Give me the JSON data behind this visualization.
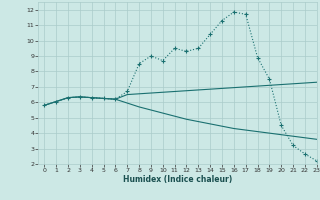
{
  "xlabel": "Humidex (Indice chaleur)",
  "bg_color": "#cce8e5",
  "grid_color": "#aaccca",
  "line_color": "#1a7070",
  "xlim": [
    -0.5,
    23
  ],
  "ylim": [
    2,
    12.5
  ],
  "xticks": [
    0,
    1,
    2,
    3,
    4,
    5,
    6,
    7,
    8,
    9,
    10,
    11,
    12,
    13,
    14,
    15,
    16,
    17,
    18,
    19,
    20,
    21,
    22,
    23
  ],
  "yticks": [
    2,
    3,
    4,
    5,
    6,
    7,
    8,
    9,
    10,
    11,
    12
  ],
  "line1_x": [
    0,
    1,
    2,
    3,
    4,
    5,
    6,
    7,
    8,
    9,
    10,
    11,
    12,
    13,
    14,
    15,
    16,
    17,
    18,
    19,
    20,
    21,
    22,
    23
  ],
  "line1_y": [
    5.8,
    6.05,
    6.3,
    6.35,
    6.3,
    6.25,
    6.2,
    6.7,
    8.5,
    9.0,
    8.7,
    9.5,
    9.3,
    9.5,
    10.4,
    11.3,
    11.85,
    11.7,
    8.9,
    7.5,
    4.5,
    3.2,
    2.65,
    2.2
  ],
  "line2_x": [
    0,
    1,
    2,
    3,
    4,
    5,
    6,
    7,
    8,
    9,
    10,
    11,
    12,
    13,
    14,
    15,
    16,
    17,
    18,
    19,
    20,
    21,
    22,
    23
  ],
  "line2_y": [
    5.8,
    6.05,
    6.3,
    6.35,
    6.3,
    6.25,
    6.2,
    6.5,
    6.55,
    6.6,
    6.65,
    6.7,
    6.75,
    6.8,
    6.85,
    6.9,
    6.95,
    7.0,
    7.05,
    7.1,
    7.15,
    7.2,
    7.25,
    7.3
  ],
  "line3_x": [
    0,
    1,
    2,
    3,
    4,
    5,
    6,
    7,
    8,
    9,
    10,
    11,
    12,
    13,
    14,
    15,
    16,
    17,
    18,
    19,
    20,
    21,
    22,
    23
  ],
  "line3_y": [
    5.8,
    6.05,
    6.3,
    6.35,
    6.3,
    6.25,
    6.2,
    5.95,
    5.7,
    5.5,
    5.3,
    5.1,
    4.9,
    4.75,
    4.6,
    4.45,
    4.3,
    4.2,
    4.1,
    4.0,
    3.9,
    3.8,
    3.7,
    3.6
  ]
}
